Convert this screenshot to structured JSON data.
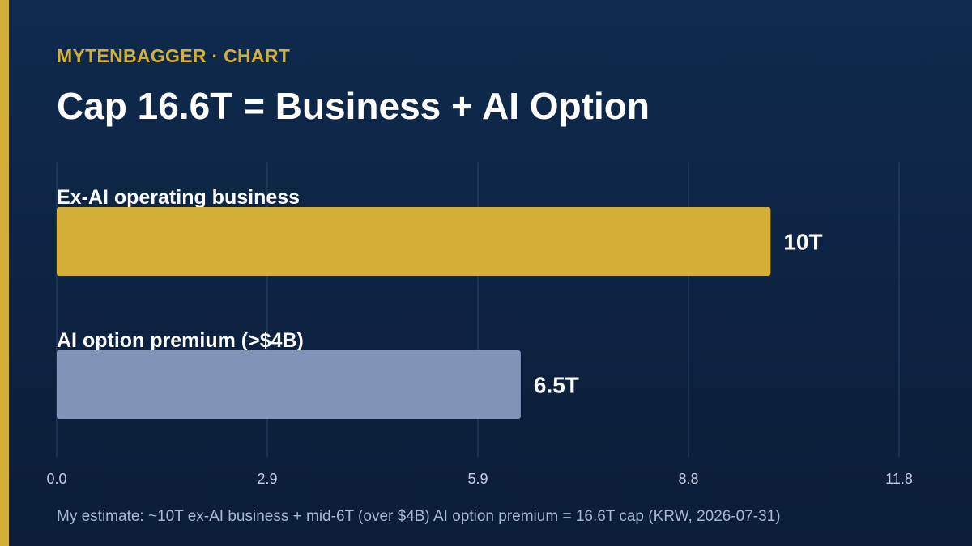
{
  "header": {
    "brand": "MYTENBAGGER · CHART",
    "title": "Cap 16.6T = Business + AI Option"
  },
  "footnote": "My estimate: ~10T ex-AI business + mid-6T (over $4B) AI option premium = 16.6T cap (KRW, 2026-07-31)",
  "colors": {
    "accent": "#d4af37",
    "bar_primary": "#d4af37",
    "bar_secondary": "#7f94b6",
    "gridline": "#2b4466",
    "background_top": "#0f2a4d",
    "background_bottom": "#0b1d38"
  },
  "chart_data": {
    "type": "bar",
    "orientation": "horizontal",
    "categories": [
      "Ex-AI operating business",
      "AI option premium (>$4B)"
    ],
    "values": [
      10,
      6.5
    ],
    "value_labels": [
      "10T",
      "6.5T"
    ],
    "bar_colors": [
      "#d4af37",
      "#7f94b6"
    ],
    "xlim": [
      0,
      11.8
    ],
    "x_ticks": [
      "0.0",
      "2.9",
      "5.9",
      "8.8",
      "11.8"
    ],
    "x_tick_values": [
      0,
      2.95,
      5.9,
      8.85,
      11.8
    ],
    "grid": true,
    "title": "Cap 16.6T = Business + AI Option",
    "xlabel": "",
    "ylabel": ""
  }
}
